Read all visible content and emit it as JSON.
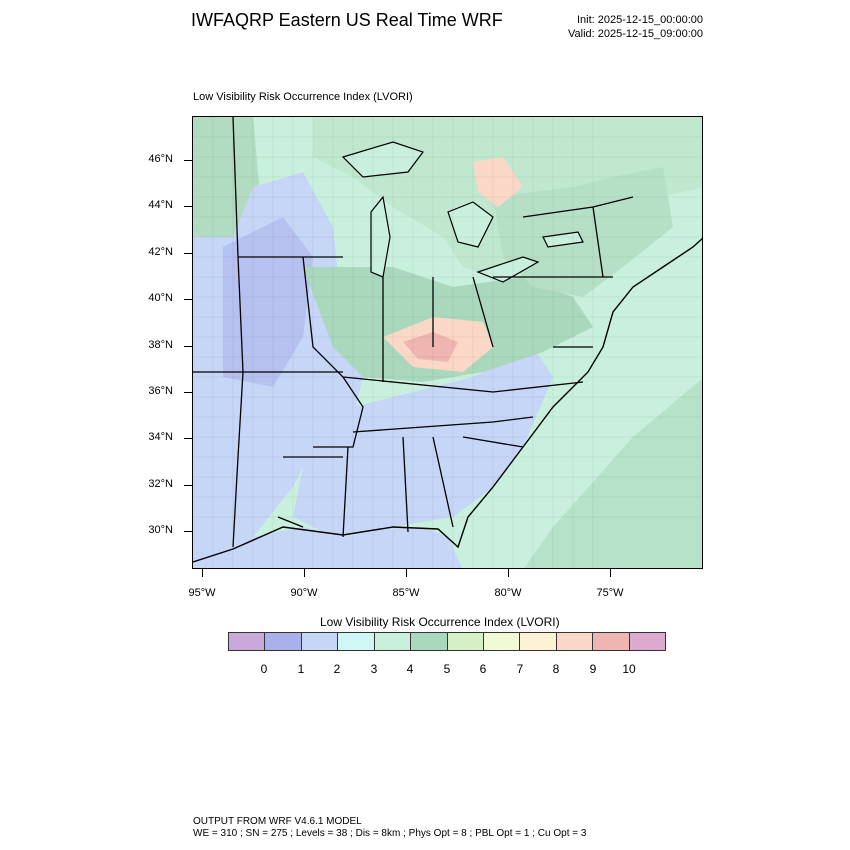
{
  "header": {
    "title": "IWFAQRP Eastern US Real Time WRF",
    "init": "Init: 2025-12-15_00:00:00",
    "valid": "Valid: 2025-12-15_09:00:00"
  },
  "map": {
    "subtitle": "Low Visibility Risk Occurrence Index   (LVORI)",
    "lat_labels": [
      "46°N",
      "44°N",
      "42°N",
      "40°N",
      "38°N",
      "36°N",
      "34°N",
      "32°N",
      "30°N"
    ],
    "lon_labels": [
      "95°W",
      "90°W",
      "85°W",
      "80°W",
      "75°W"
    ]
  },
  "colorbar": {
    "title": "Low Visibility Risk Occurrence Index  (LVORI)",
    "labels": [
      "0",
      "1",
      "2",
      "3",
      "4",
      "5",
      "6",
      "7",
      "8",
      "9",
      "10"
    ],
    "colors": [
      "#c9a8da",
      "#aab0ea",
      "#c6d6f7",
      "#cff8f5",
      "#c8f0dc",
      "#a9d8bd",
      "#d4f0c4",
      "#f0fbd5",
      "#fdf3d4",
      "#fad7c6",
      "#efb5b1",
      "#dca9cf"
    ]
  },
  "footer": {
    "line1": "OUTPUT FROM WRF V4.6.1 MODEL",
    "line2": "WE = 310 ; SN = 275 ; Levels = 38 ; Dis = 8km ; Phys Opt = 8 ; PBL Opt = 1 ; Cu Opt = 3"
  }
}
